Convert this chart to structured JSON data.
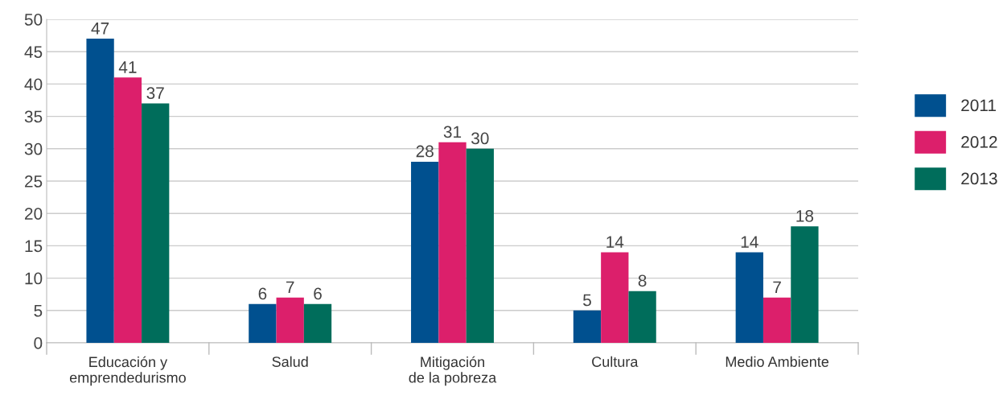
{
  "chart_data": {
    "type": "bar",
    "categories": [
      "Educación y\nemprendedurismo",
      "Salud",
      "Mitigación\nde la pobreza",
      "Cultura",
      "Medio Ambiente"
    ],
    "series": [
      {
        "name": "2011",
        "color": "#00508f",
        "values": [
          47,
          6,
          28,
          5,
          14
        ]
      },
      {
        "name": "2012",
        "color": "#dc1f6b",
        "values": [
          41,
          7,
          31,
          14,
          7
        ]
      },
      {
        "name": "2013",
        "color": "#006d5b",
        "values": [
          37,
          6,
          30,
          8,
          18
        ]
      }
    ],
    "ylim": [
      0,
      50
    ],
    "yticks": [
      0,
      5,
      10,
      15,
      20,
      25,
      30,
      35,
      40,
      45,
      50
    ],
    "grid": "y",
    "legend": "right",
    "data_labels": true
  }
}
